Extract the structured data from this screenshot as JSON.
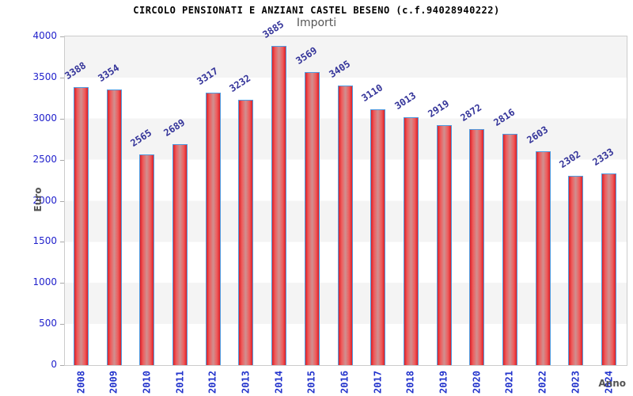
{
  "chart_data": {
    "type": "bar",
    "title": "CIRCOLO PENSIONATI E ANZIANI CASTEL BESENO (c.f.94028940222)",
    "subtitle": "Importi",
    "xlabel": "Anno",
    "ylabel": "Euro",
    "categories": [
      "2008",
      "2009",
      "2010",
      "2011",
      "2012",
      "2013",
      "2014",
      "2015",
      "2016",
      "2017",
      "2018",
      "2019",
      "2020",
      "2021",
      "2022",
      "2023",
      "2024"
    ],
    "values": [
      3388,
      3354,
      2565,
      2689,
      3317,
      3232,
      3885,
      3569,
      3405,
      3110,
      3013,
      2919,
      2872,
      2816,
      2603,
      2302,
      2333
    ],
    "ylim": [
      0,
      4000
    ],
    "ytick_step": 500,
    "legend_position": "none",
    "grid": "alternating horizontal bands",
    "colors": {
      "bar_edge_fill": "#dd2127",
      "bar_center_fill": "#d09090",
      "bar_border": "#4f9be0",
      "band_gray": "#f4f4f4",
      "plot_border": "#cccccc",
      "x_tick_text": "#2233cc",
      "y_tick_text": "#2222cc",
      "value_label_text": "#333399",
      "axis_title_text": "#555555",
      "title_text": "#000000"
    }
  }
}
